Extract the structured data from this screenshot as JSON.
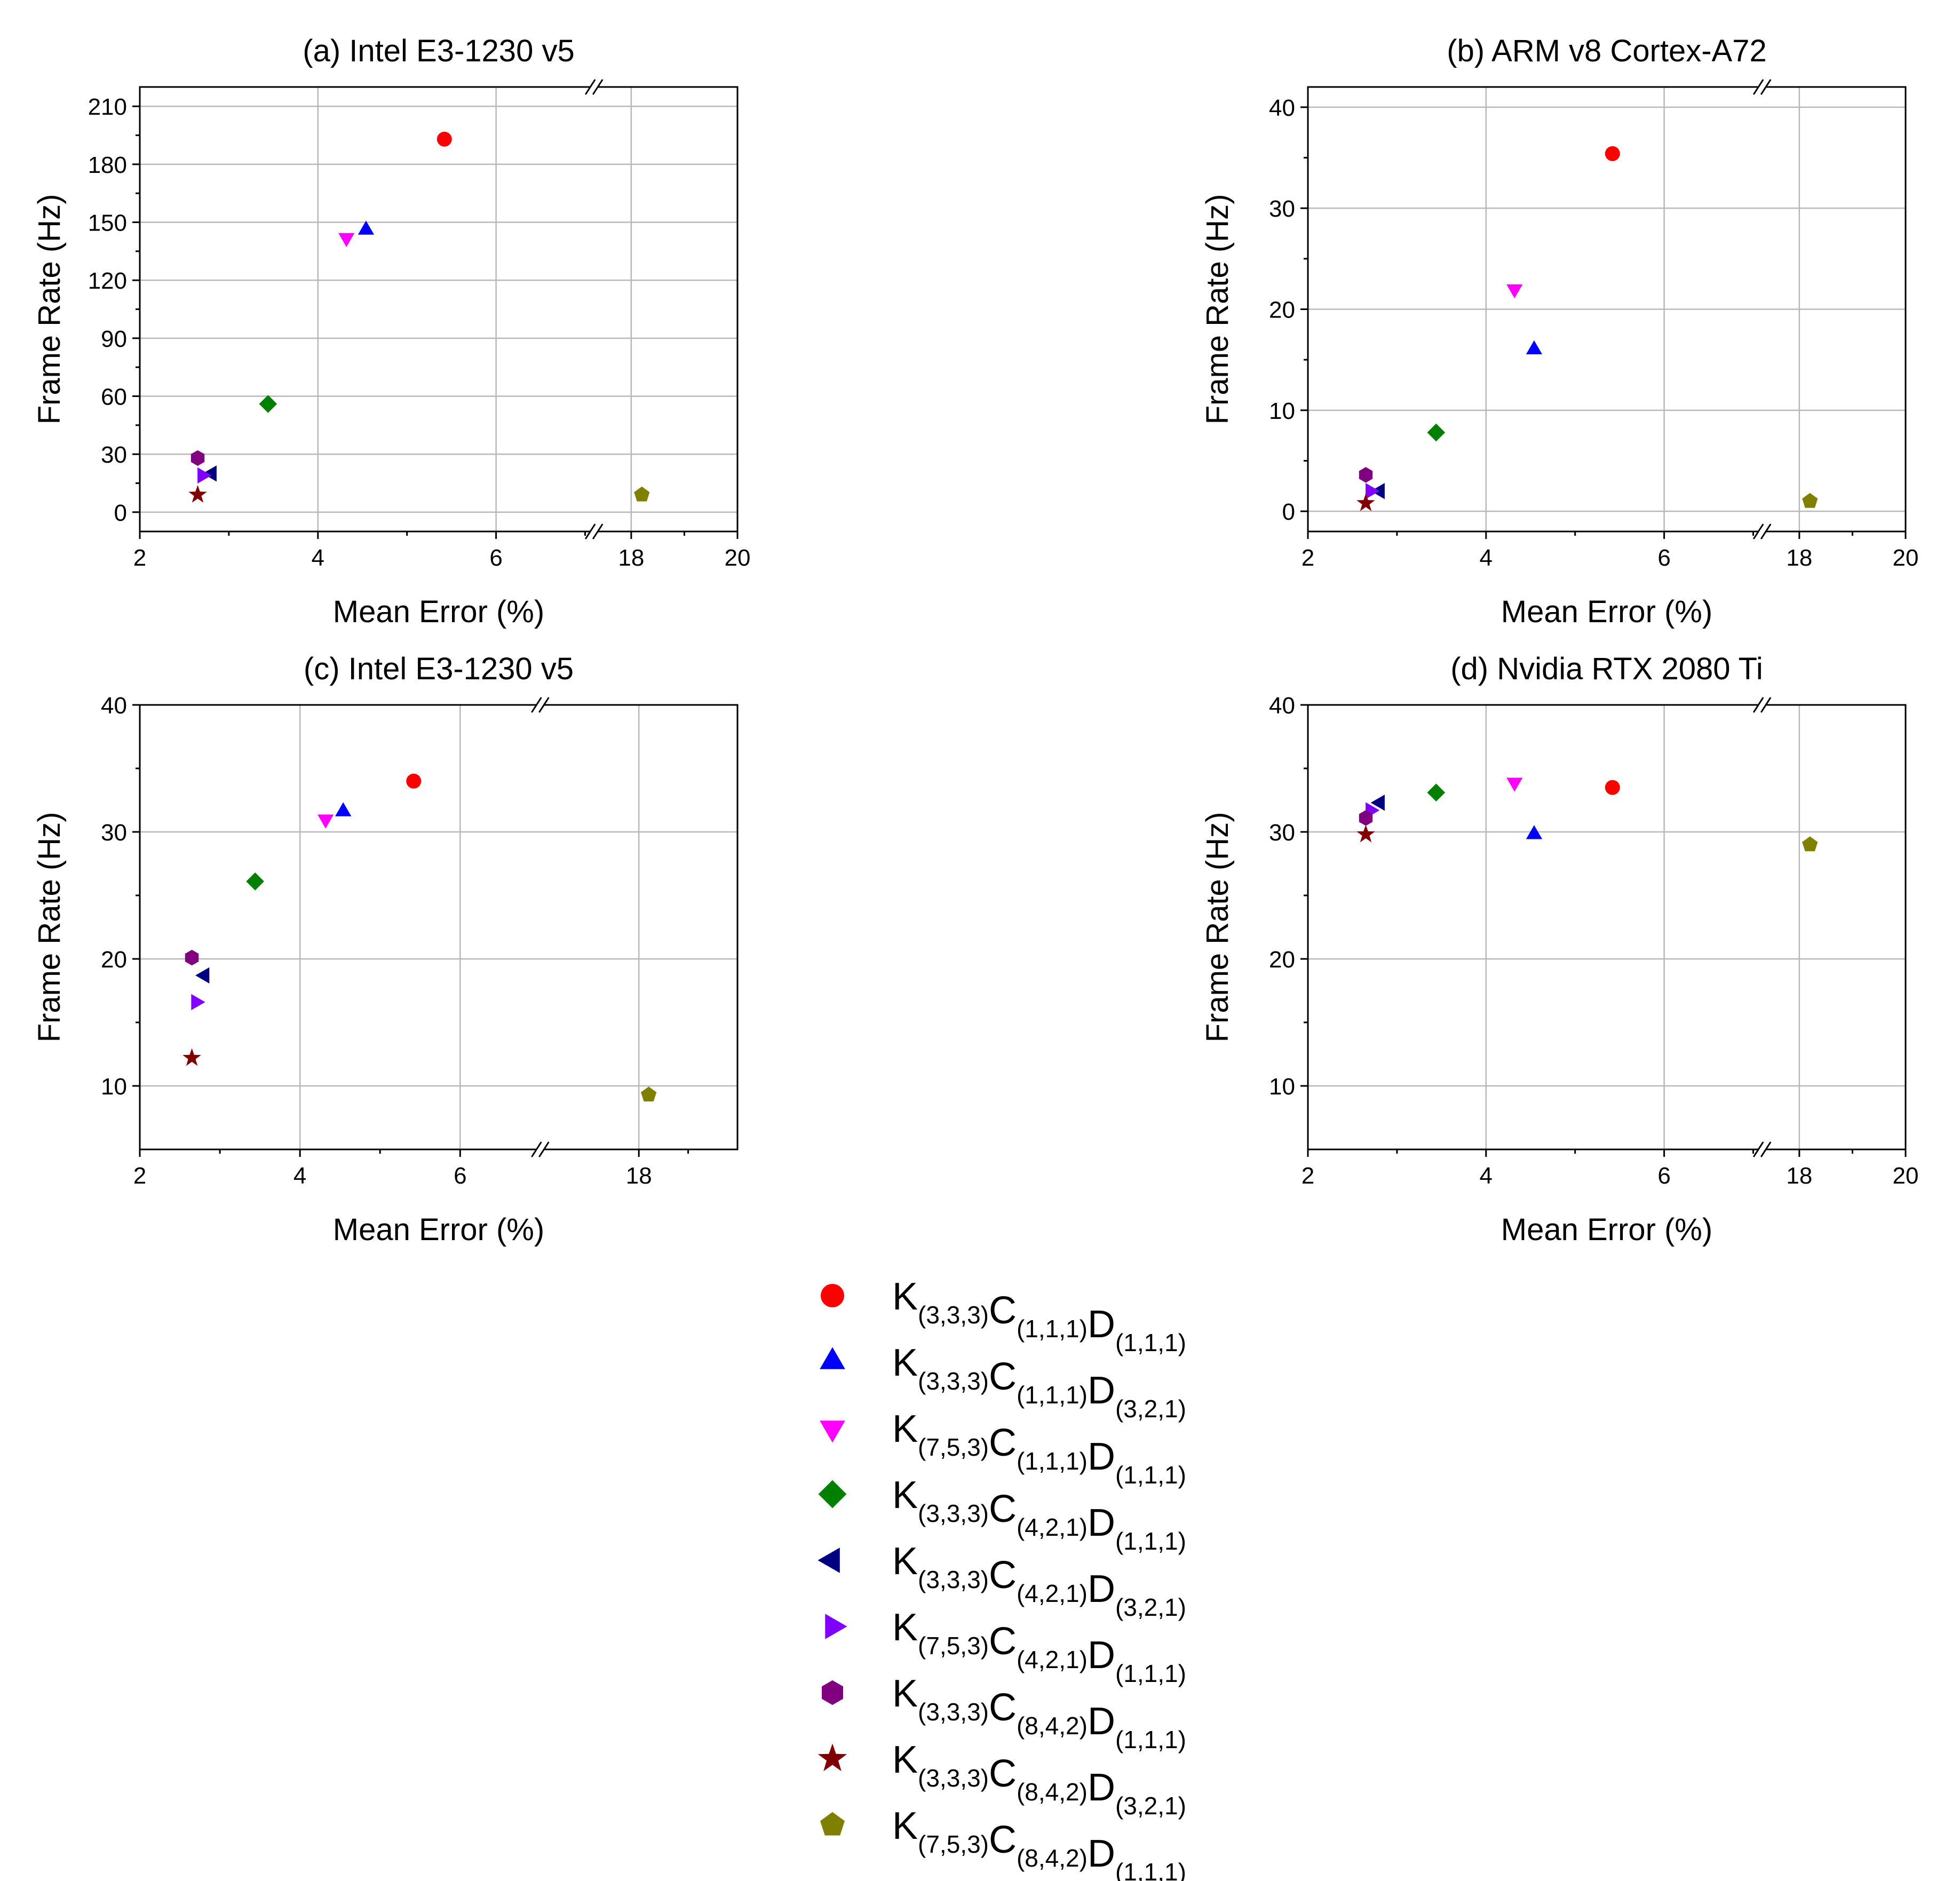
{
  "figure_label": "Frame rate vs. mean error",
  "series_styles": [
    {
      "key": "k333_c111_d111",
      "label": "K(3,3,3)C(1,1,1)D(1,1,1)",
      "marker": "circle",
      "color": "#ff0000",
      "parts": [
        [
          "K",
          "(3,3,3)"
        ],
        [
          "C",
          "(1,1,1)"
        ],
        [
          "D",
          "(1,1,1)"
        ]
      ]
    },
    {
      "key": "k333_c111_d321",
      "label": "K(3,3,3)C(1,1,1)D(3,2,1)",
      "marker": "triangle-up",
      "color": "#0000ff",
      "parts": [
        [
          "K",
          "(3,3,3)"
        ],
        [
          "C",
          "(1,1,1)"
        ],
        [
          "D",
          "(3,2,1)"
        ]
      ]
    },
    {
      "key": "k753_c111_d111",
      "label": "K(7,5,3)C(1,1,1)D(1,1,1)",
      "marker": "triangle-down",
      "color": "#ff00ff",
      "parts": [
        [
          "K",
          "(7,5,3)"
        ],
        [
          "C",
          "(1,1,1)"
        ],
        [
          "D",
          "(1,1,1)"
        ]
      ]
    },
    {
      "key": "k333_c421_d111",
      "label": "K(3,3,3)C(4,2,1)D(1,1,1)",
      "marker": "diamond",
      "color": "#008000",
      "parts": [
        [
          "K",
          "(3,3,3)"
        ],
        [
          "C",
          "(4,2,1)"
        ],
        [
          "D",
          "(1,1,1)"
        ]
      ]
    },
    {
      "key": "k333_c421_d321",
      "label": "K(3,3,3)C(4,2,1)D(3,2,1)",
      "marker": "triangle-left",
      "color": "#000080",
      "parts": [
        [
          "K",
          "(3,3,3)"
        ],
        [
          "C",
          "(4,2,1)"
        ],
        [
          "D",
          "(3,2,1)"
        ]
      ]
    },
    {
      "key": "k753_c421_d111",
      "label": "K(7,5,3)C(4,2,1)D(1,1,1)",
      "marker": "triangle-right",
      "color": "#8000ff",
      "parts": [
        [
          "K",
          "(7,5,3)"
        ],
        [
          "C",
          "(4,2,1)"
        ],
        [
          "D",
          "(1,1,1)"
        ]
      ]
    },
    {
      "key": "k333_c842_d111",
      "label": "K(3,3,3)C(8,4,2)D(1,1,1)",
      "marker": "hexagon",
      "color": "#800080",
      "parts": [
        [
          "K",
          "(3,3,3)"
        ],
        [
          "C",
          "(8,4,2)"
        ],
        [
          "D",
          "(1,1,1)"
        ]
      ]
    },
    {
      "key": "k333_c842_d321",
      "label": "K(3,3,3)C(8,4,2)D(3,2,1)",
      "marker": "star",
      "color": "#800000",
      "parts": [
        [
          "K",
          "(3,3,3)"
        ],
        [
          "C",
          "(8,4,2)"
        ],
        [
          "D",
          "(3,2,1)"
        ]
      ]
    },
    {
      "key": "k753_c842_d111",
      "label": "K(7,5,3)C(8,4,2)D(1,1,1)",
      "marker": "pentagon",
      "color": "#808000",
      "parts": [
        [
          "K",
          "(7,5,3)"
        ],
        [
          "C",
          "(8,4,2)"
        ],
        [
          "D",
          "(1,1,1)"
        ]
      ]
    }
  ],
  "chart_data": [
    {
      "type": "scatter",
      "title": "(a) Intel E3-1230 v5",
      "xlabel": "Mean Error (%)",
      "ylabel": "Frame Rate (Hz)",
      "ylim": [
        -10,
        220
      ],
      "yticks": [
        0,
        30,
        60,
        90,
        120,
        150,
        180,
        210
      ],
      "x_break": {
        "left_range": [
          2,
          7.1
        ],
        "right_range": [
          17.3,
          20
        ]
      },
      "xticks": [
        2,
        4,
        6,
        18,
        20
      ],
      "grid": true,
      "series": [
        {
          "name": "K(3,3,3)C(1,1,1)D(1,1,1)",
          "x": 5.42,
          "y": 193
        },
        {
          "name": "K(3,3,3)C(1,1,1)D(3,2,1)",
          "x": 4.54,
          "y": 146
        },
        {
          "name": "K(7,5,3)C(1,1,1)D(1,1,1)",
          "x": 4.32,
          "y": 142
        },
        {
          "name": "K(3,3,3)C(4,2,1)D(1,1,1)",
          "x": 3.44,
          "y": 56
        },
        {
          "name": "K(3,3,3)C(4,2,1)D(3,2,1)",
          "x": 2.81,
          "y": 20
        },
        {
          "name": "K(7,5,3)C(4,2,1)D(1,1,1)",
          "x": 2.7,
          "y": 19
        },
        {
          "name": "K(3,3,3)C(8,4,2)D(1,1,1)",
          "x": 2.65,
          "y": 28
        },
        {
          "name": "K(3,3,3)C(8,4,2)D(3,2,1)",
          "x": 2.65,
          "y": 9
        },
        {
          "name": "K(7,5,3)C(8,4,2)D(1,1,1)",
          "x": 18.2,
          "y": 9
        }
      ]
    },
    {
      "type": "scatter",
      "title": "(b) ARM v8 Cortex-A72",
      "xlabel": "Mean Error (%)",
      "ylabel": "Frame Rate (Hz)",
      "ylim": [
        -2,
        42
      ],
      "yticks": [
        0,
        10,
        20,
        30,
        40
      ],
      "x_break": {
        "left_range": [
          2,
          7.1
        ],
        "right_range": [
          17.3,
          20
        ]
      },
      "xticks": [
        2,
        4,
        6,
        18,
        20
      ],
      "grid": true,
      "series": [
        {
          "name": "K(3,3,3)C(1,1,1)D(1,1,1)",
          "x": 5.42,
          "y": 35.4
        },
        {
          "name": "K(3,3,3)C(1,1,1)D(3,2,1)",
          "x": 4.54,
          "y": 16.0
        },
        {
          "name": "K(7,5,3)C(1,1,1)D(1,1,1)",
          "x": 4.32,
          "y": 22.0
        },
        {
          "name": "K(3,3,3)C(4,2,1)D(1,1,1)",
          "x": 3.44,
          "y": 7.8
        },
        {
          "name": "K(3,3,3)C(4,2,1)D(3,2,1)",
          "x": 2.81,
          "y": 2.0
        },
        {
          "name": "K(7,5,3)C(4,2,1)D(1,1,1)",
          "x": 2.7,
          "y": 2.0
        },
        {
          "name": "K(3,3,3)C(8,4,2)D(1,1,1)",
          "x": 2.65,
          "y": 3.6
        },
        {
          "name": "K(3,3,3)C(8,4,2)D(3,2,1)",
          "x": 2.65,
          "y": 0.8
        },
        {
          "name": "K(7,5,3)C(8,4,2)D(1,1,1)",
          "x": 18.2,
          "y": 1.0
        }
      ]
    },
    {
      "type": "scatter",
      "title": "(c) Intel E3-1230 v5",
      "xlabel": "Mean Error (%)",
      "ylabel": "Frame Rate (Hz)",
      "ylim": [
        5,
        40
      ],
      "yticks": [
        10,
        20,
        30,
        40
      ],
      "x_break": {
        "left_range": [
          2,
          7.0
        ],
        "right_range": [
          16.0,
          20
        ]
      },
      "xticks": [
        2,
        4,
        6,
        18
      ],
      "grid": true,
      "series": [
        {
          "name": "K(3,3,3)C(1,1,1)D(1,1,1)",
          "x": 5.42,
          "y": 34.0
        },
        {
          "name": "K(3,3,3)C(1,1,1)D(3,2,1)",
          "x": 4.54,
          "y": 31.6
        },
        {
          "name": "K(7,5,3)C(1,1,1)D(1,1,1)",
          "x": 4.32,
          "y": 31.0
        },
        {
          "name": "K(3,3,3)C(4,2,1)D(1,1,1)",
          "x": 3.44,
          "y": 26.1
        },
        {
          "name": "K(3,3,3)C(4,2,1)D(3,2,1)",
          "x": 2.81,
          "y": 18.7
        },
        {
          "name": "K(7,5,3)C(4,2,1)D(1,1,1)",
          "x": 2.7,
          "y": 16.6
        },
        {
          "name": "K(3,3,3)C(8,4,2)D(1,1,1)",
          "x": 2.65,
          "y": 20.1
        },
        {
          "name": "K(3,3,3)C(8,4,2)D(3,2,1)",
          "x": 2.65,
          "y": 12.2
        },
        {
          "name": "K(7,5,3)C(8,4,2)D(1,1,1)",
          "x": 18.2,
          "y": 9.3
        }
      ]
    },
    {
      "type": "scatter",
      "title": "(d) Nvidia RTX 2080 Ti",
      "xlabel": "Mean Error (%)",
      "ylabel": "Frame Rate (Hz)",
      "ylim": [
        5,
        40
      ],
      "yticks": [
        10,
        20,
        30,
        40
      ],
      "x_break": {
        "left_range": [
          2,
          7.1
        ],
        "right_range": [
          17.3,
          20
        ]
      },
      "xticks": [
        2,
        4,
        6,
        18,
        20
      ],
      "grid": true,
      "series": [
        {
          "name": "K(3,3,3)C(1,1,1)D(1,1,1)",
          "x": 5.42,
          "y": 33.5
        },
        {
          "name": "K(3,3,3)C(1,1,1)D(3,2,1)",
          "x": 4.54,
          "y": 29.8
        },
        {
          "name": "K(7,5,3)C(1,1,1)D(1,1,1)",
          "x": 4.32,
          "y": 33.9
        },
        {
          "name": "K(3,3,3)C(4,2,1)D(1,1,1)",
          "x": 3.44,
          "y": 33.1
        },
        {
          "name": "K(3,3,3)C(4,2,1)D(3,2,1)",
          "x": 2.81,
          "y": 32.3
        },
        {
          "name": "K(7,5,3)C(4,2,1)D(1,1,1)",
          "x": 2.7,
          "y": 31.7
        },
        {
          "name": "K(3,3,3)C(8,4,2)D(1,1,1)",
          "x": 2.65,
          "y": 31.1
        },
        {
          "name": "K(3,3,3)C(8,4,2)D(3,2,1)",
          "x": 2.65,
          "y": 29.8
        },
        {
          "name": "K(7,5,3)C(8,4,2)D(1,1,1)",
          "x": 18.2,
          "y": 29.0
        }
      ]
    }
  ]
}
